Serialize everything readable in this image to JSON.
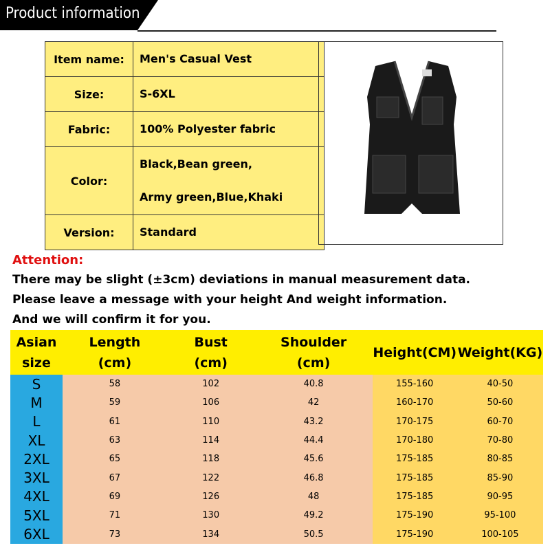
{
  "header": {
    "title": "Product information"
  },
  "info": {
    "rows": [
      {
        "label": "Item name:",
        "value": [
          "Men's Casual Vest"
        ]
      },
      {
        "label": "Size:",
        "value": [
          "S-6XL"
        ]
      },
      {
        "label": "Fabric:",
        "value": [
          "100% Polyester fabric"
        ]
      },
      {
        "label": "Color:",
        "value": [
          "Black,Bean green,",
          "Army green,Blue,Khaki"
        ]
      },
      {
        "label": "Version:",
        "value": [
          "Standard"
        ]
      }
    ]
  },
  "attention": {
    "title": "Attention:",
    "lines": [
      "There may be slight (±3cm) deviations in manual measurement data.",
      "Please leave a message with your height And weight information.",
      "And we will confirm it for you."
    ]
  },
  "size_table": {
    "headers": [
      "Asian size",
      "Length (cm)",
      "Bust (cm)",
      "Shoulder (cm)",
      "Height(CM)",
      "Weight(KG)"
    ],
    "rows": [
      [
        "S",
        58,
        102,
        40.8,
        "155-160",
        "40-50"
      ],
      [
        "M",
        59,
        106,
        42,
        "160-170",
        "50-60"
      ],
      [
        "L",
        61,
        110,
        43.2,
        "170-175",
        "60-70"
      ],
      [
        "XL",
        63,
        114,
        44.4,
        "170-180",
        "70-80"
      ],
      [
        "2XL",
        65,
        118,
        45.6,
        "175-185",
        "80-85"
      ],
      [
        "3XL",
        67,
        122,
        46.8,
        "175-185",
        "85-90"
      ],
      [
        "4XL",
        69,
        126,
        48,
        "175-185",
        "90-95"
      ],
      [
        "5XL",
        71,
        130,
        49.2,
        "175-190",
        "95-100"
      ],
      [
        "6XL",
        73,
        134,
        50.5,
        "175-190",
        "100-105"
      ]
    ]
  }
}
